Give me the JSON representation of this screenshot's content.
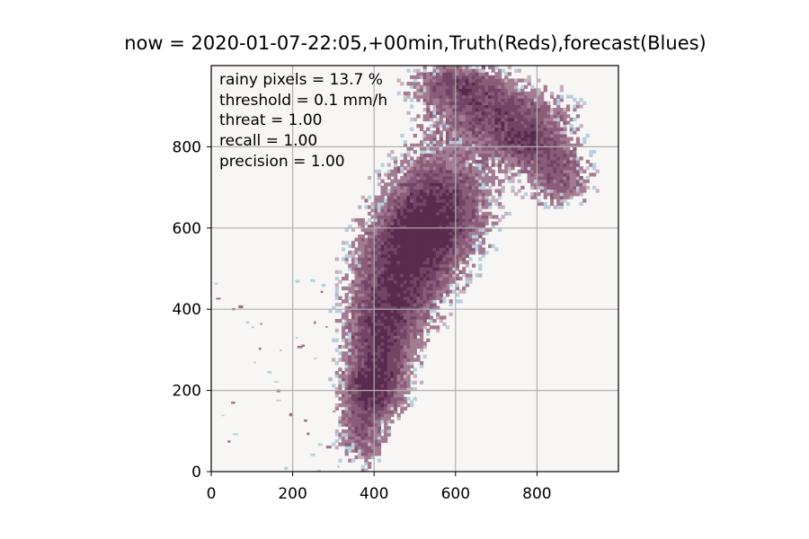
{
  "chart_data": {
    "type": "heatmap",
    "title": "now = 2020-01-07-22:05,+00min,Truth(Reds),forecast(Blues)",
    "xlabel": "",
    "ylabel": "",
    "xlim": [
      0,
      1000
    ],
    "ylim": [
      0,
      1000
    ],
    "x_ticks": [
      0,
      200,
      400,
      600,
      800
    ],
    "y_ticks": [
      0,
      200,
      400,
      600,
      800
    ],
    "x_tick_labels": [
      "0",
      "200",
      "400",
      "600",
      "800"
    ],
    "y_tick_labels": [
      "0",
      "200",
      "400",
      "600",
      "800"
    ],
    "grid": true,
    "colormaps": {
      "truth": "Reds",
      "forecast": "Blues"
    },
    "colors": {
      "background": "#f8f5f5",
      "truth_overlap": "#7b4a68",
      "truth_dark": "#4a2040",
      "forecast": "#b7cfdd",
      "grid": "#b0b0b0"
    },
    "annotations": [
      "rainy pixels = 13.7 %",
      "threshold = 0.1 mm/h",
      "threat = 1.00",
      "recall = 1.00",
      "precision = 1.00"
    ]
  }
}
